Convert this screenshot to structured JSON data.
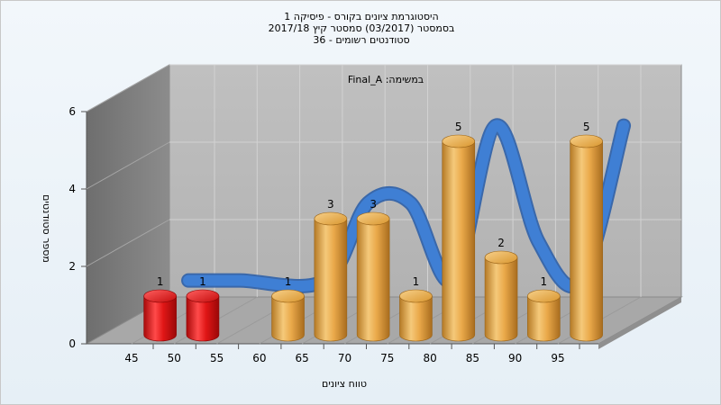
{
  "chart_data": {
    "type": "bar",
    "title_lines": [
      "היסטוגרמת ציונים בקורס - פיסיקה 1",
      "בסמסטר (03/2017) סמסטר קיץ 2017/18",
      "סטודנטים רשומים - 36"
    ],
    "annotation": "במשימה: Final_A",
    "xlabel": "טווח ציונים",
    "ylabel": "מספר סטודנטים",
    "ylim": [
      0,
      6
    ],
    "yticks": [
      0,
      2,
      4,
      6
    ],
    "xticks": [
      45,
      50,
      55,
      60,
      65,
      70,
      75,
      80,
      85,
      90,
      95
    ],
    "bars": [
      {
        "x": 47.5,
        "value": 1,
        "label": "1",
        "color": "red"
      },
      {
        "x": 52.5,
        "value": 1,
        "label": "1",
        "color": "red"
      },
      {
        "x": 62.5,
        "value": 1,
        "label": "1",
        "color": "gold"
      },
      {
        "x": 67.5,
        "value": 3,
        "label": "3",
        "color": "gold"
      },
      {
        "x": 72.5,
        "value": 3,
        "label": "3",
        "color": "gold"
      },
      {
        "x": 77.5,
        "value": 1,
        "label": "1",
        "color": "gold"
      },
      {
        "x": 82.5,
        "value": 5,
        "label": "5",
        "color": "gold"
      },
      {
        "x": 87.5,
        "value": 2,
        "label": "2",
        "color": "gold"
      },
      {
        "x": 92.5,
        "value": 1,
        "label": "1",
        "color": "gold"
      },
      {
        "x": 97.5,
        "value": 5,
        "label": "5",
        "color": "gold"
      }
    ],
    "grid": true,
    "colors": {
      "red_bar": "#e01010",
      "gold_bar": "#e9a640",
      "curve": "#3f7fd4",
      "back_wall": "#b8b8b8",
      "side_wall": "#7f7f7f",
      "floor": "#a9a9a9"
    }
  }
}
